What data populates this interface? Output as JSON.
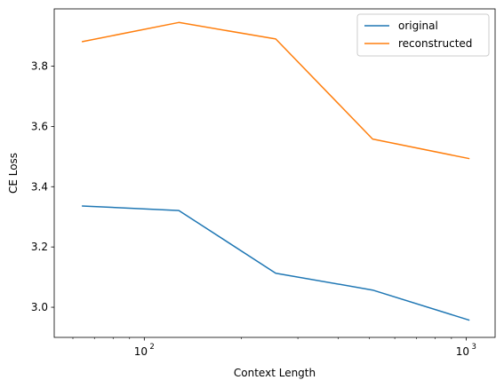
{
  "chart_data": {
    "type": "line",
    "title": "",
    "xlabel": "Context Length",
    "ylabel": "CE Loss",
    "x_scale": "log",
    "x": [
      64,
      128,
      256,
      512,
      1024
    ],
    "xlim": [
      52.5,
      1230
    ],
    "ylim": [
      2.9,
      3.99
    ],
    "grid": false,
    "legend_position": "top-right",
    "x_ticks": [
      {
        "value": 100,
        "base": "10",
        "exp": "2"
      },
      {
        "value": 1000,
        "base": "10",
        "exp": "3"
      }
    ],
    "y_ticks": [
      {
        "value": 3.0,
        "label": "3.0"
      },
      {
        "value": 3.2,
        "label": "3.2"
      },
      {
        "value": 3.4,
        "label": "3.4"
      },
      {
        "value": 3.6,
        "label": "3.6"
      },
      {
        "value": 3.8,
        "label": "3.8"
      }
    ],
    "series": [
      {
        "name": "original",
        "color": "#1f77b4",
        "values": [
          3.336,
          3.321,
          3.113,
          3.057,
          2.957
        ]
      },
      {
        "name": "reconstructed",
        "color": "#ff7f0e",
        "values": [
          3.881,
          3.945,
          3.89,
          3.558,
          3.493
        ]
      }
    ]
  }
}
